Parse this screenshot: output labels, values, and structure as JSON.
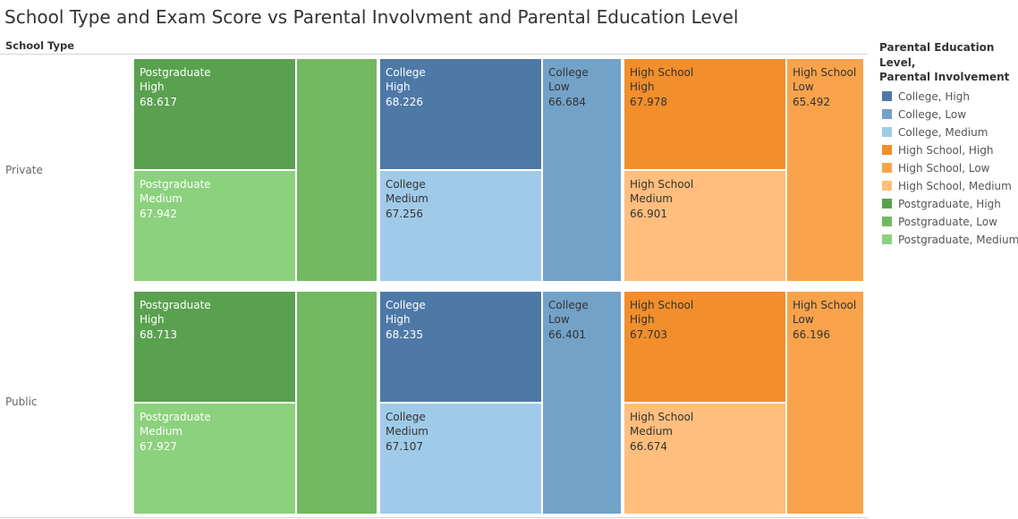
{
  "title": "School Type and Exam Score vs Parental Involvment and Parental Education Level",
  "row_header": "School Type",
  "colors": {
    "College, High": "#4e79a7",
    "College, Low": "#73a2c8",
    "College, Medium": "#a0cbe8",
    "High School, High": "#f28e2b",
    "High School, Low": "#f8a34c",
    "High School, Medium": "#ffbe7d",
    "Postgraduate, High": "#59a14f",
    "Postgraduate, Low": "#72b962",
    "Postgraduate, Medium": "#8cd17d"
  },
  "legend": {
    "title_line1": "Parental Education Level,",
    "title_line2": "Parental Involvement",
    "items": [
      "College, High",
      "College, Low",
      "College, Medium",
      "High School, High",
      "High School, Low",
      "High School, Medium",
      "Postgraduate, High",
      "Postgraduate, Low",
      "Postgraduate, Medium"
    ]
  },
  "chart_data": {
    "type": "treemap",
    "title": "School Type and Exam Score vs Parental Involvment and Parental Education Level",
    "rows": [
      {
        "school_type": "Private",
        "cells": [
          {
            "education": "Postgraduate",
            "involvement": "High",
            "score": "68.617"
          },
          {
            "education": "Postgraduate",
            "involvement": "Medium",
            "score": "67.942"
          },
          {
            "education": "Postgraduate",
            "involvement": "Low",
            "score": ""
          },
          {
            "education": "College",
            "involvement": "High",
            "score": "68.226"
          },
          {
            "education": "College",
            "involvement": "Medium",
            "score": "67.256"
          },
          {
            "education": "College",
            "involvement": "Low",
            "score": "66.684"
          },
          {
            "education": "High School",
            "involvement": "High",
            "score": "67.978"
          },
          {
            "education": "High School",
            "involvement": "Medium",
            "score": "66.901"
          },
          {
            "education": "High School",
            "involvement": "Low",
            "score": "65.492"
          }
        ]
      },
      {
        "school_type": "Public",
        "cells": [
          {
            "education": "Postgraduate",
            "involvement": "High",
            "score": "68.713"
          },
          {
            "education": "Postgraduate",
            "involvement": "Medium",
            "score": "67.927"
          },
          {
            "education": "Postgraduate",
            "involvement": "Low",
            "score": ""
          },
          {
            "education": "College",
            "involvement": "High",
            "score": "68.235"
          },
          {
            "education": "College",
            "involvement": "Medium",
            "score": "67.107"
          },
          {
            "education": "College",
            "involvement": "Low",
            "score": "66.401"
          },
          {
            "education": "High School",
            "involvement": "High",
            "score": "67.703"
          },
          {
            "education": "High School",
            "involvement": "Medium",
            "score": "66.674"
          },
          {
            "education": "High School",
            "involvement": "Low",
            "score": "66.196"
          }
        ]
      }
    ]
  }
}
